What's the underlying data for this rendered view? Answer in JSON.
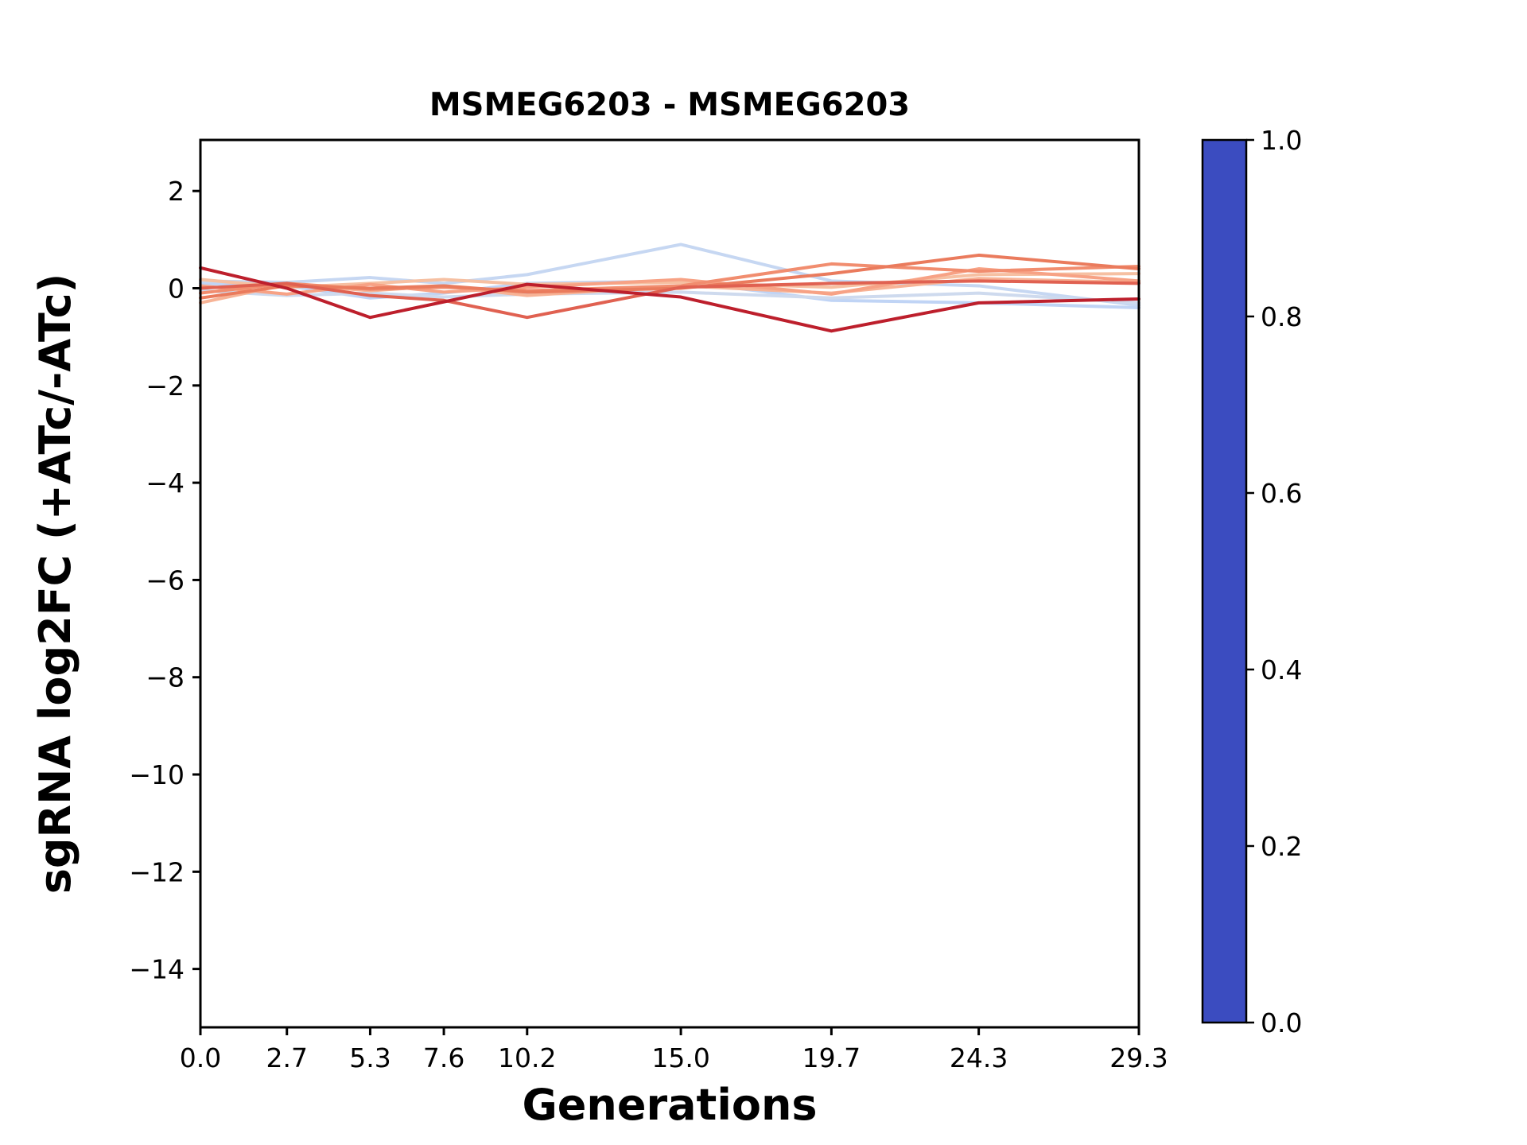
{
  "chart_data": {
    "type": "line",
    "title": "MSMEG6203 - MSMEG6203",
    "xlabel": "Generations",
    "ylabel": "sgRNA log2FC (+ATc/-ATc)",
    "x": [
      0.0,
      2.7,
      5.3,
      7.6,
      10.2,
      15.0,
      19.7,
      24.3,
      29.3
    ],
    "xlim": [
      0.0,
      29.3
    ],
    "ylim": [
      -15.2,
      3.05
    ],
    "grid": false,
    "legend": "colorbar-right",
    "xticks": [
      {
        "value": 0.0,
        "label": "0.0"
      },
      {
        "value": 2.7,
        "label": "2.7"
      },
      {
        "value": 5.3,
        "label": "5.3"
      },
      {
        "value": 7.6,
        "label": "7.6"
      },
      {
        "value": 10.2,
        "label": "10.2"
      },
      {
        "value": 15.0,
        "label": "15.0"
      },
      {
        "value": 19.7,
        "label": "19.7"
      },
      {
        "value": 24.3,
        "label": "24.3"
      },
      {
        "value": 29.3,
        "label": "29.3"
      }
    ],
    "yticks": [
      {
        "value": 2,
        "label": "2"
      },
      {
        "value": 0,
        "label": "0"
      },
      {
        "value": -2,
        "label": "−2"
      },
      {
        "value": -4,
        "label": "−4"
      },
      {
        "value": -6,
        "label": "−6"
      },
      {
        "value": -8,
        "label": "−8"
      },
      {
        "value": -10,
        "label": "−10"
      },
      {
        "value": -12,
        "label": "−12"
      },
      {
        "value": -14,
        "label": "−14"
      }
    ],
    "series": [
      {
        "cmap_value": 0.4,
        "color": "#c0d4f5",
        "values": [
          0.1,
          0.05,
          -0.2,
          -0.1,
          0.1,
          0.15,
          -0.25,
          -0.3,
          -0.4
        ]
      },
      {
        "cmap_value": 0.42,
        "color": "#c6d7f2",
        "values": [
          0.15,
          0.12,
          0.22,
          0.1,
          0.28,
          0.9,
          0.15,
          0.05,
          -0.35
        ]
      },
      {
        "cmap_value": 0.45,
        "color": "#cedaee",
        "values": [
          -0.05,
          -0.15,
          -0.1,
          -0.18,
          -0.12,
          -0.08,
          -0.2,
          -0.1,
          -0.3
        ]
      },
      {
        "cmap_value": 0.62,
        "color": "#f6c0a2",
        "values": [
          0.18,
          0.02,
          0.1,
          0.18,
          0.08,
          0.12,
          0.02,
          0.28,
          0.3
        ]
      },
      {
        "cmap_value": 0.66,
        "color": "#f7b396",
        "values": [
          -0.3,
          0.08,
          -0.05,
          0.05,
          -0.15,
          0.05,
          -0.1,
          0.2,
          0.12
        ]
      },
      {
        "cmap_value": 0.72,
        "color": "#f7a285",
        "values": [
          0.05,
          -0.12,
          0.08,
          -0.08,
          0.02,
          0.18,
          -0.12,
          0.4,
          0.15
        ]
      },
      {
        "cmap_value": 0.78,
        "color": "#f18d6f",
        "values": [
          -0.1,
          0.1,
          -0.02,
          0.02,
          -0.05,
          0.05,
          0.5,
          0.35,
          0.45
        ]
      },
      {
        "cmap_value": 0.82,
        "color": "#ea7b5d",
        "values": [
          -0.2,
          0.05,
          0.0,
          0.05,
          -0.08,
          0.0,
          0.3,
          0.68,
          0.4
        ]
      },
      {
        "cmap_value": 0.86,
        "color": "#e06151",
        "values": [
          0.0,
          0.1,
          -0.15,
          -0.25,
          -0.6,
          0.02,
          0.1,
          0.15,
          0.1
        ]
      },
      {
        "cmap_value": 0.97,
        "color": "#bd1f2c",
        "values": [
          0.42,
          0.0,
          -0.6,
          -0.28,
          0.08,
          -0.18,
          -0.88,
          -0.3,
          -0.22
        ]
      }
    ],
    "colorbar": {
      "range": [
        0.0,
        1.0
      ],
      "ticks": [
        {
          "value": 1.0,
          "label": "1.0"
        },
        {
          "value": 0.8,
          "label": "0.8"
        },
        {
          "value": 0.6,
          "label": "0.6"
        },
        {
          "value": 0.4,
          "label": "0.4"
        },
        {
          "value": 0.2,
          "label": "0.2"
        },
        {
          "value": 0.0,
          "label": "0.0"
        }
      ],
      "gradient": [
        {
          "value": 0.0,
          "color": "#3b4cc0"
        },
        {
          "value": 0.1,
          "color": "#5977e3"
        },
        {
          "value": 0.2,
          "color": "#7b9ff9"
        },
        {
          "value": 0.3,
          "color": "#9ebeff"
        },
        {
          "value": 0.4,
          "color": "#c0d4f5"
        },
        {
          "value": 0.5,
          "color": "#dddcdc"
        },
        {
          "value": 0.6,
          "color": "#f6c3a6"
        },
        {
          "value": 0.7,
          "color": "#f7a889"
        },
        {
          "value": 0.8,
          "color": "#ee8468"
        },
        {
          "value": 0.9,
          "color": "#d65244"
        },
        {
          "value": 1.0,
          "color": "#b40426"
        }
      ]
    }
  }
}
